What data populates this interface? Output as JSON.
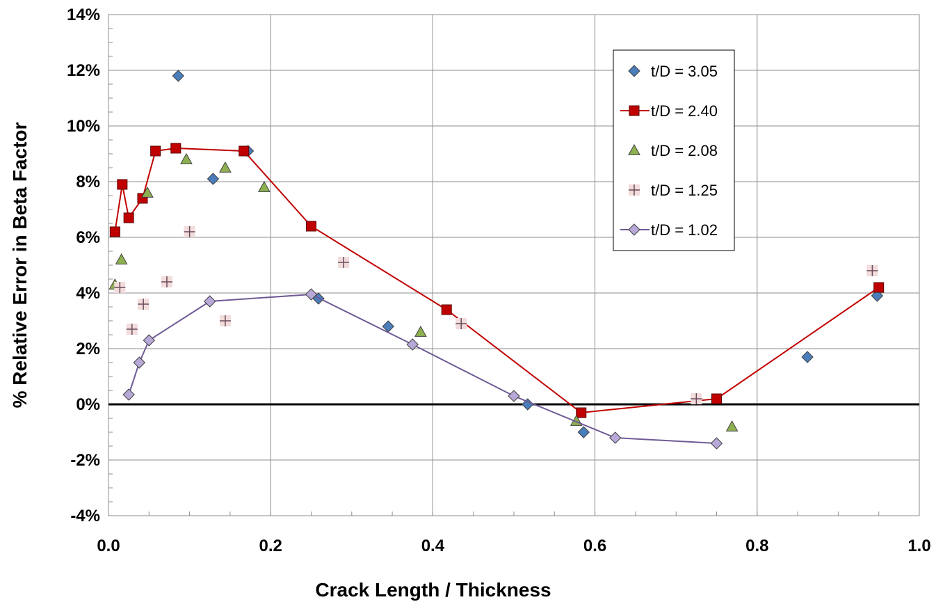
{
  "chart_data": {
    "type": "scatter",
    "title": "",
    "xlabel": "Crack Length / Thickness",
    "ylabel": "% Relative Error in Beta Factor",
    "xlim": [
      0,
      1
    ],
    "ylim": [
      -4,
      14
    ],
    "x_ticks": [
      0,
      0.2,
      0.4,
      0.6,
      0.8,
      1.0
    ],
    "x_tick_labels": [
      "0.0",
      "0.2",
      "0.4",
      "0.6",
      "0.8",
      "1.0"
    ],
    "y_ticks": [
      -4,
      -2,
      0,
      2,
      4,
      6,
      8,
      10,
      12,
      14
    ],
    "y_tick_labels": [
      "-4%",
      "-2%",
      "0%",
      "2%",
      "4%",
      "6%",
      "8%",
      "10%",
      "12%",
      "14%"
    ],
    "grid": true,
    "legend_position": "top-right",
    "series": [
      {
        "name": "t/D = 3.05",
        "marker": "diamond",
        "line": false,
        "color": "#4a7ebb",
        "x": [
          0.086,
          0.129,
          0.172,
          0.259,
          0.345,
          0.517,
          0.586,
          0.862,
          0.948
        ],
        "y": [
          11.8,
          8.1,
          9.1,
          3.8,
          2.8,
          0.0,
          -1.0,
          1.7,
          3.9
        ]
      },
      {
        "name": "t/D = 2.40",
        "marker": "square",
        "line": true,
        "color": "#c00000",
        "x": [
          0.008,
          0.017,
          0.025,
          0.042,
          0.058,
          0.083,
          0.167,
          0.25,
          0.417,
          0.583,
          0.75,
          0.95
        ],
        "y": [
          6.2,
          7.9,
          6.7,
          7.4,
          9.1,
          9.2,
          9.1,
          6.4,
          3.4,
          -0.3,
          0.2,
          4.2
        ]
      },
      {
        "name": "t/D = 2.08",
        "marker": "triangle",
        "line": false,
        "color": "#8db050",
        "x": [
          0.008,
          0.016,
          0.048,
          0.096,
          0.144,
          0.192,
          0.385,
          0.577,
          0.769
        ],
        "y": [
          4.3,
          5.2,
          7.6,
          8.8,
          8.5,
          7.8,
          2.6,
          -0.6,
          -0.8
        ]
      },
      {
        "name": "t/D = 1.25",
        "marker": "plus",
        "line": false,
        "color": "#d8b4b8",
        "x": [
          0.014,
          0.029,
          0.043,
          0.072,
          0.1,
          0.144,
          0.29,
          0.435,
          0.725,
          0.942
        ],
        "y": [
          4.2,
          2.7,
          3.6,
          4.4,
          6.2,
          3.0,
          5.1,
          2.9,
          0.2,
          4.8
        ]
      },
      {
        "name": "t/D = 1.02",
        "marker": "diamond",
        "line": true,
        "color": "#b8a8d8",
        "line_color": "#6e5a96",
        "x": [
          0.025,
          0.038,
          0.05,
          0.125,
          0.25,
          0.375,
          0.5,
          0.625,
          0.75
        ],
        "y": [
          0.35,
          1.5,
          2.3,
          3.7,
          3.95,
          2.15,
          0.3,
          -1.2,
          -1.4
        ]
      }
    ]
  }
}
